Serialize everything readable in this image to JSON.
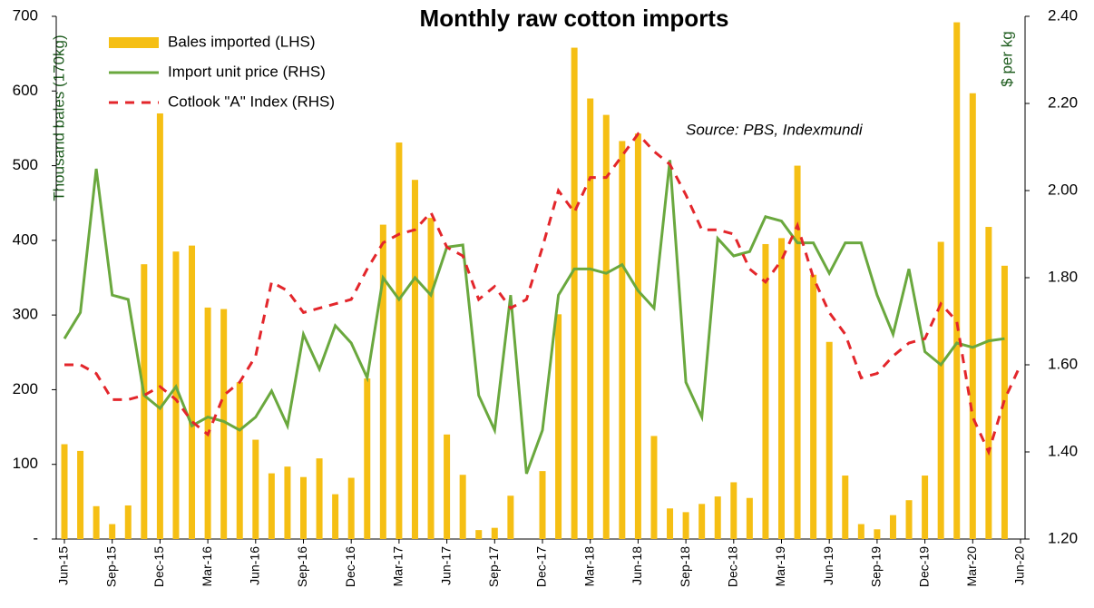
{
  "chart_data": {
    "type": "bar-line",
    "title": "Monthly raw cotton imports",
    "annotation": "Source: PBS, Indexmundi",
    "y_label": "Thousand bales  (170kg)",
    "y2_label": "$ per kg",
    "categories": [
      "Jun-15",
      null,
      null,
      "Sep-15",
      null,
      null,
      "Dec-15",
      null,
      null,
      "Mar-16",
      null,
      null,
      "Jun-16",
      null,
      null,
      "Sep-16",
      null,
      null,
      "Dec-16",
      null,
      null,
      "Mar-17",
      null,
      null,
      "Jun-17",
      null,
      null,
      "Sep-17",
      null,
      null,
      "Dec-17",
      null,
      null,
      "Mar-18",
      null,
      null,
      "Jun-18",
      null,
      null,
      "Sep-18",
      null,
      null,
      "Dec-18",
      null,
      null,
      "Mar-19",
      null,
      null,
      "Jun-19",
      null,
      null,
      "Sep-19",
      null,
      null,
      "Dec-19",
      null,
      null,
      "Mar-20",
      null,
      null,
      "Jun-20"
    ],
    "ylim": [
      0,
      700
    ],
    "yticks": [
      {
        "value": 0,
        "label": "-"
      },
      100,
      200,
      300,
      400,
      500,
      600,
      700
    ],
    "y2lim": [
      1.2,
      2.4
    ],
    "y2ticks": [
      {
        "value": 1.2,
        "label": "1.20"
      },
      {
        "value": 1.4,
        "label": "1.40"
      },
      {
        "value": 1.6,
        "label": "1.60"
      },
      {
        "value": 1.8,
        "label": "1.80"
      },
      {
        "value": 2.0,
        "label": "2.00"
      },
      {
        "value": 2.2,
        "label": "2.20"
      },
      {
        "value": 2.4,
        "label": "2.40"
      }
    ],
    "grid": false,
    "legend": "top-left",
    "series": [
      {
        "name": "Bales imported (LHS)",
        "type": "bar",
        "color": "#f5bf14",
        "values": [
          127,
          118,
          44,
          20,
          45,
          368,
          570,
          385,
          393,
          310,
          308,
          210,
          133,
          88,
          97,
          83,
          108,
          60,
          82,
          215,
          421,
          531,
          481,
          430,
          140,
          86,
          12,
          15,
          58,
          null,
          91,
          301,
          658,
          590,
          568,
          533,
          543,
          138,
          41,
          36,
          47,
          57,
          76,
          55,
          395,
          403,
          500,
          354,
          264,
          85,
          20,
          13,
          32,
          52,
          85,
          398,
          692,
          597,
          418,
          366,
          null
        ]
      },
      {
        "name": "Import unit price (RHS)",
        "type": "line",
        "axis": "y2",
        "color": "#6aa83e",
        "style": "solid",
        "values": [
          1.66,
          1.72,
          2.05,
          1.76,
          1.75,
          1.53,
          1.5,
          1.55,
          1.46,
          1.48,
          1.47,
          1.45,
          1.48,
          1.54,
          1.46,
          1.67,
          1.59,
          1.69,
          1.65,
          1.57,
          1.8,
          1.75,
          1.8,
          1.76,
          1.87,
          1.875,
          1.53,
          1.45,
          1.76,
          1.35,
          1.45,
          1.76,
          1.82,
          1.82,
          1.81,
          1.83,
          1.77,
          1.73,
          2.07,
          1.56,
          1.48,
          1.89,
          1.85,
          1.86,
          1.94,
          1.93,
          1.88,
          1.88,
          1.81,
          1.88,
          1.88,
          1.76,
          1.67,
          1.82,
          1.63,
          1.6,
          1.65,
          1.64,
          1.655,
          1.66,
          null
        ]
      },
      {
        "name": "Cotlook \"A\" Index (RHS)",
        "type": "line",
        "axis": "y2",
        "color": "#e3262b",
        "style": "dashed",
        "values": [
          1.6,
          1.6,
          1.58,
          1.52,
          1.52,
          1.53,
          1.55,
          1.52,
          1.47,
          1.44,
          1.53,
          1.56,
          1.62,
          1.79,
          1.77,
          1.72,
          1.73,
          1.74,
          1.75,
          1.82,
          1.88,
          1.9,
          1.91,
          1.95,
          1.87,
          1.85,
          1.75,
          1.78,
          1.73,
          1.75,
          1.87,
          2.0,
          1.95,
          2.03,
          2.03,
          2.08,
          2.13,
          2.09,
          2.06,
          1.99,
          1.91,
          1.91,
          1.9,
          1.82,
          1.79,
          1.84,
          1.92,
          1.8,
          1.72,
          1.67,
          1.57,
          1.58,
          1.62,
          1.65,
          1.66,
          1.74,
          1.7,
          1.48,
          1.4,
          1.52,
          1.6
        ]
      }
    ]
  }
}
